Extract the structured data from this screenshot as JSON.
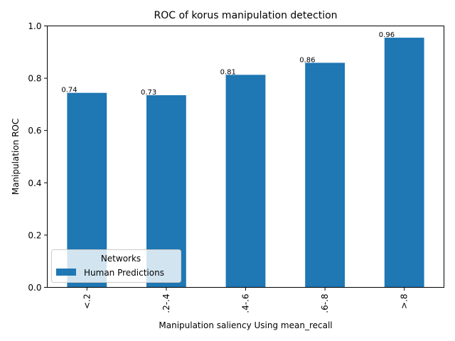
{
  "chart_data": {
    "type": "bar",
    "title": "ROC of korus manipulation detection",
    "xlabel": "Manipulation saliency Using mean_recall",
    "ylabel": "Manipulation ROC",
    "categories": [
      "<.2",
      ".2-.4",
      ".4-.6",
      ".6-.8",
      ">.8"
    ],
    "series": [
      {
        "name": "Human Predictions",
        "values": [
          0.744,
          0.735,
          0.813,
          0.859,
          0.955
        ]
      }
    ],
    "data_labels": [
      "0.74",
      "0.73",
      "0.81",
      "0.86",
      "0.96"
    ],
    "ylim": [
      0,
      1.0
    ],
    "yticks": [
      "0.0",
      "0.2",
      "0.4",
      "0.6",
      "0.8",
      "1.0"
    ],
    "ytick_values": [
      0,
      0.2,
      0.4,
      0.6,
      0.8,
      1.0
    ],
    "grid": false,
    "legend": {
      "title": "Networks",
      "placement": "lower-left"
    },
    "colors": {
      "bar": "#1f77b4"
    }
  }
}
